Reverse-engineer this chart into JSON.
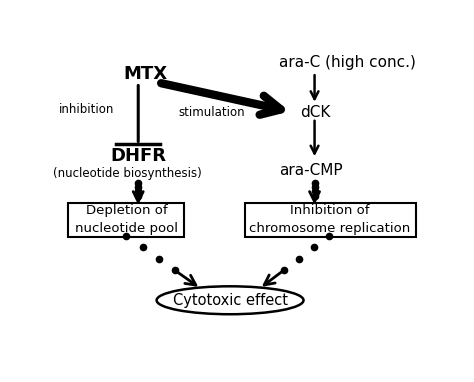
{
  "bg_color": "#ffffff",
  "fig_width": 4.74,
  "fig_height": 3.82,
  "labels": {
    "MTX": "MTX",
    "ara_C": "ara-C (high conc.)",
    "dCK": "dCK",
    "DHFR": "DHFR",
    "DHFR_sub": "(nucleotide biosynthesis)",
    "ara_CMP": "ara-CMP",
    "box_left": "Depletion of\nnucleotide pool",
    "box_right": "Inhibition of\nchromosome replication",
    "cytotoxic": "Cytotoxic effect",
    "inhibition": "inhibition",
    "stimulation": "stimulation"
  }
}
